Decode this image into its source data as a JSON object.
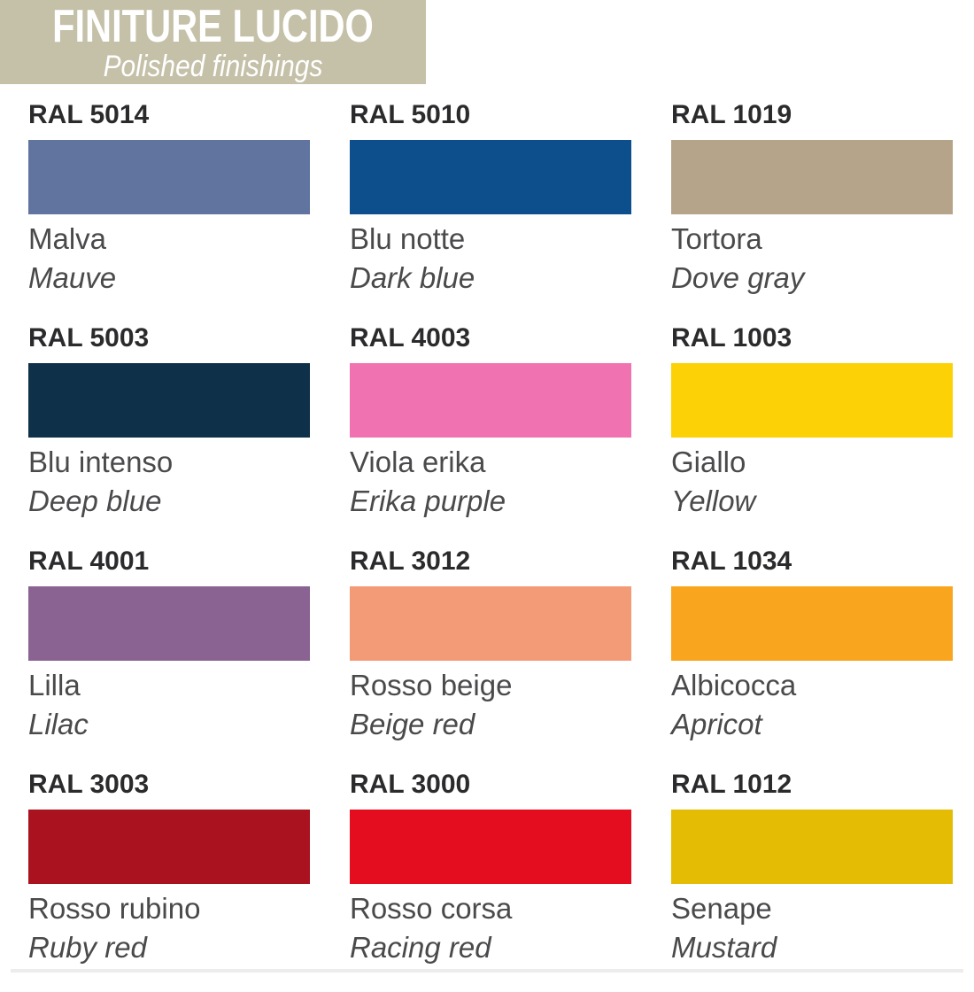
{
  "header": {
    "title": "FINITURE LUCIDO",
    "subtitle": "Polished finishings",
    "bg_color": "#c5c0a8",
    "text_color": "#ffffff"
  },
  "palette_meta": {
    "code_text_color": "#2b2b2d",
    "name_text_color": "#4a4a4c",
    "page_bg_color": "#ffffff",
    "bottom_edge_color": "#ececec"
  },
  "swatches": [
    {
      "code": "RAL 5014",
      "name_it": "Malva",
      "name_en": "Mauve",
      "hex": "#60749f"
    },
    {
      "code": "RAL 5010",
      "name_it": "Blu notte",
      "name_en": "Dark blue",
      "hex": "#0d4e8c"
    },
    {
      "code": "RAL 1019",
      "name_it": "Tortora",
      "name_en": "Dove gray",
      "hex": "#b5a489"
    },
    {
      "code": "RAL 5003",
      "name_it": "Blu intenso",
      "name_en": "Deep blue",
      "hex": "#0f3049"
    },
    {
      "code": "RAL 4003",
      "name_it": "Viola erika",
      "name_en": "Erika purple",
      "hex": "#f172b1"
    },
    {
      "code": "RAL 1003",
      "name_it": "Giallo",
      "name_en": "Yellow",
      "hex": "#fcd106"
    },
    {
      "code": "RAL 4001",
      "name_it": "Lilla",
      "name_en": "Lilac",
      "hex": "#8b6392"
    },
    {
      "code": "RAL 3012",
      "name_it": "Rosso beige",
      "name_en": "Beige red",
      "hex": "#f29b76"
    },
    {
      "code": "RAL 1034",
      "name_it": "Albicocca",
      "name_en": "Apricot",
      "hex": "#f9a51d"
    },
    {
      "code": "RAL 3003",
      "name_it": "Rosso rubino",
      "name_en": "Ruby red",
      "hex": "#aa1220"
    },
    {
      "code": "RAL 3000",
      "name_it": "Rosso corsa",
      "name_en": "Racing red",
      "hex": "#e30d1f"
    },
    {
      "code": "RAL 1012",
      "name_it": "Senape",
      "name_en": "Mustard",
      "hex": "#e5bc04"
    }
  ]
}
